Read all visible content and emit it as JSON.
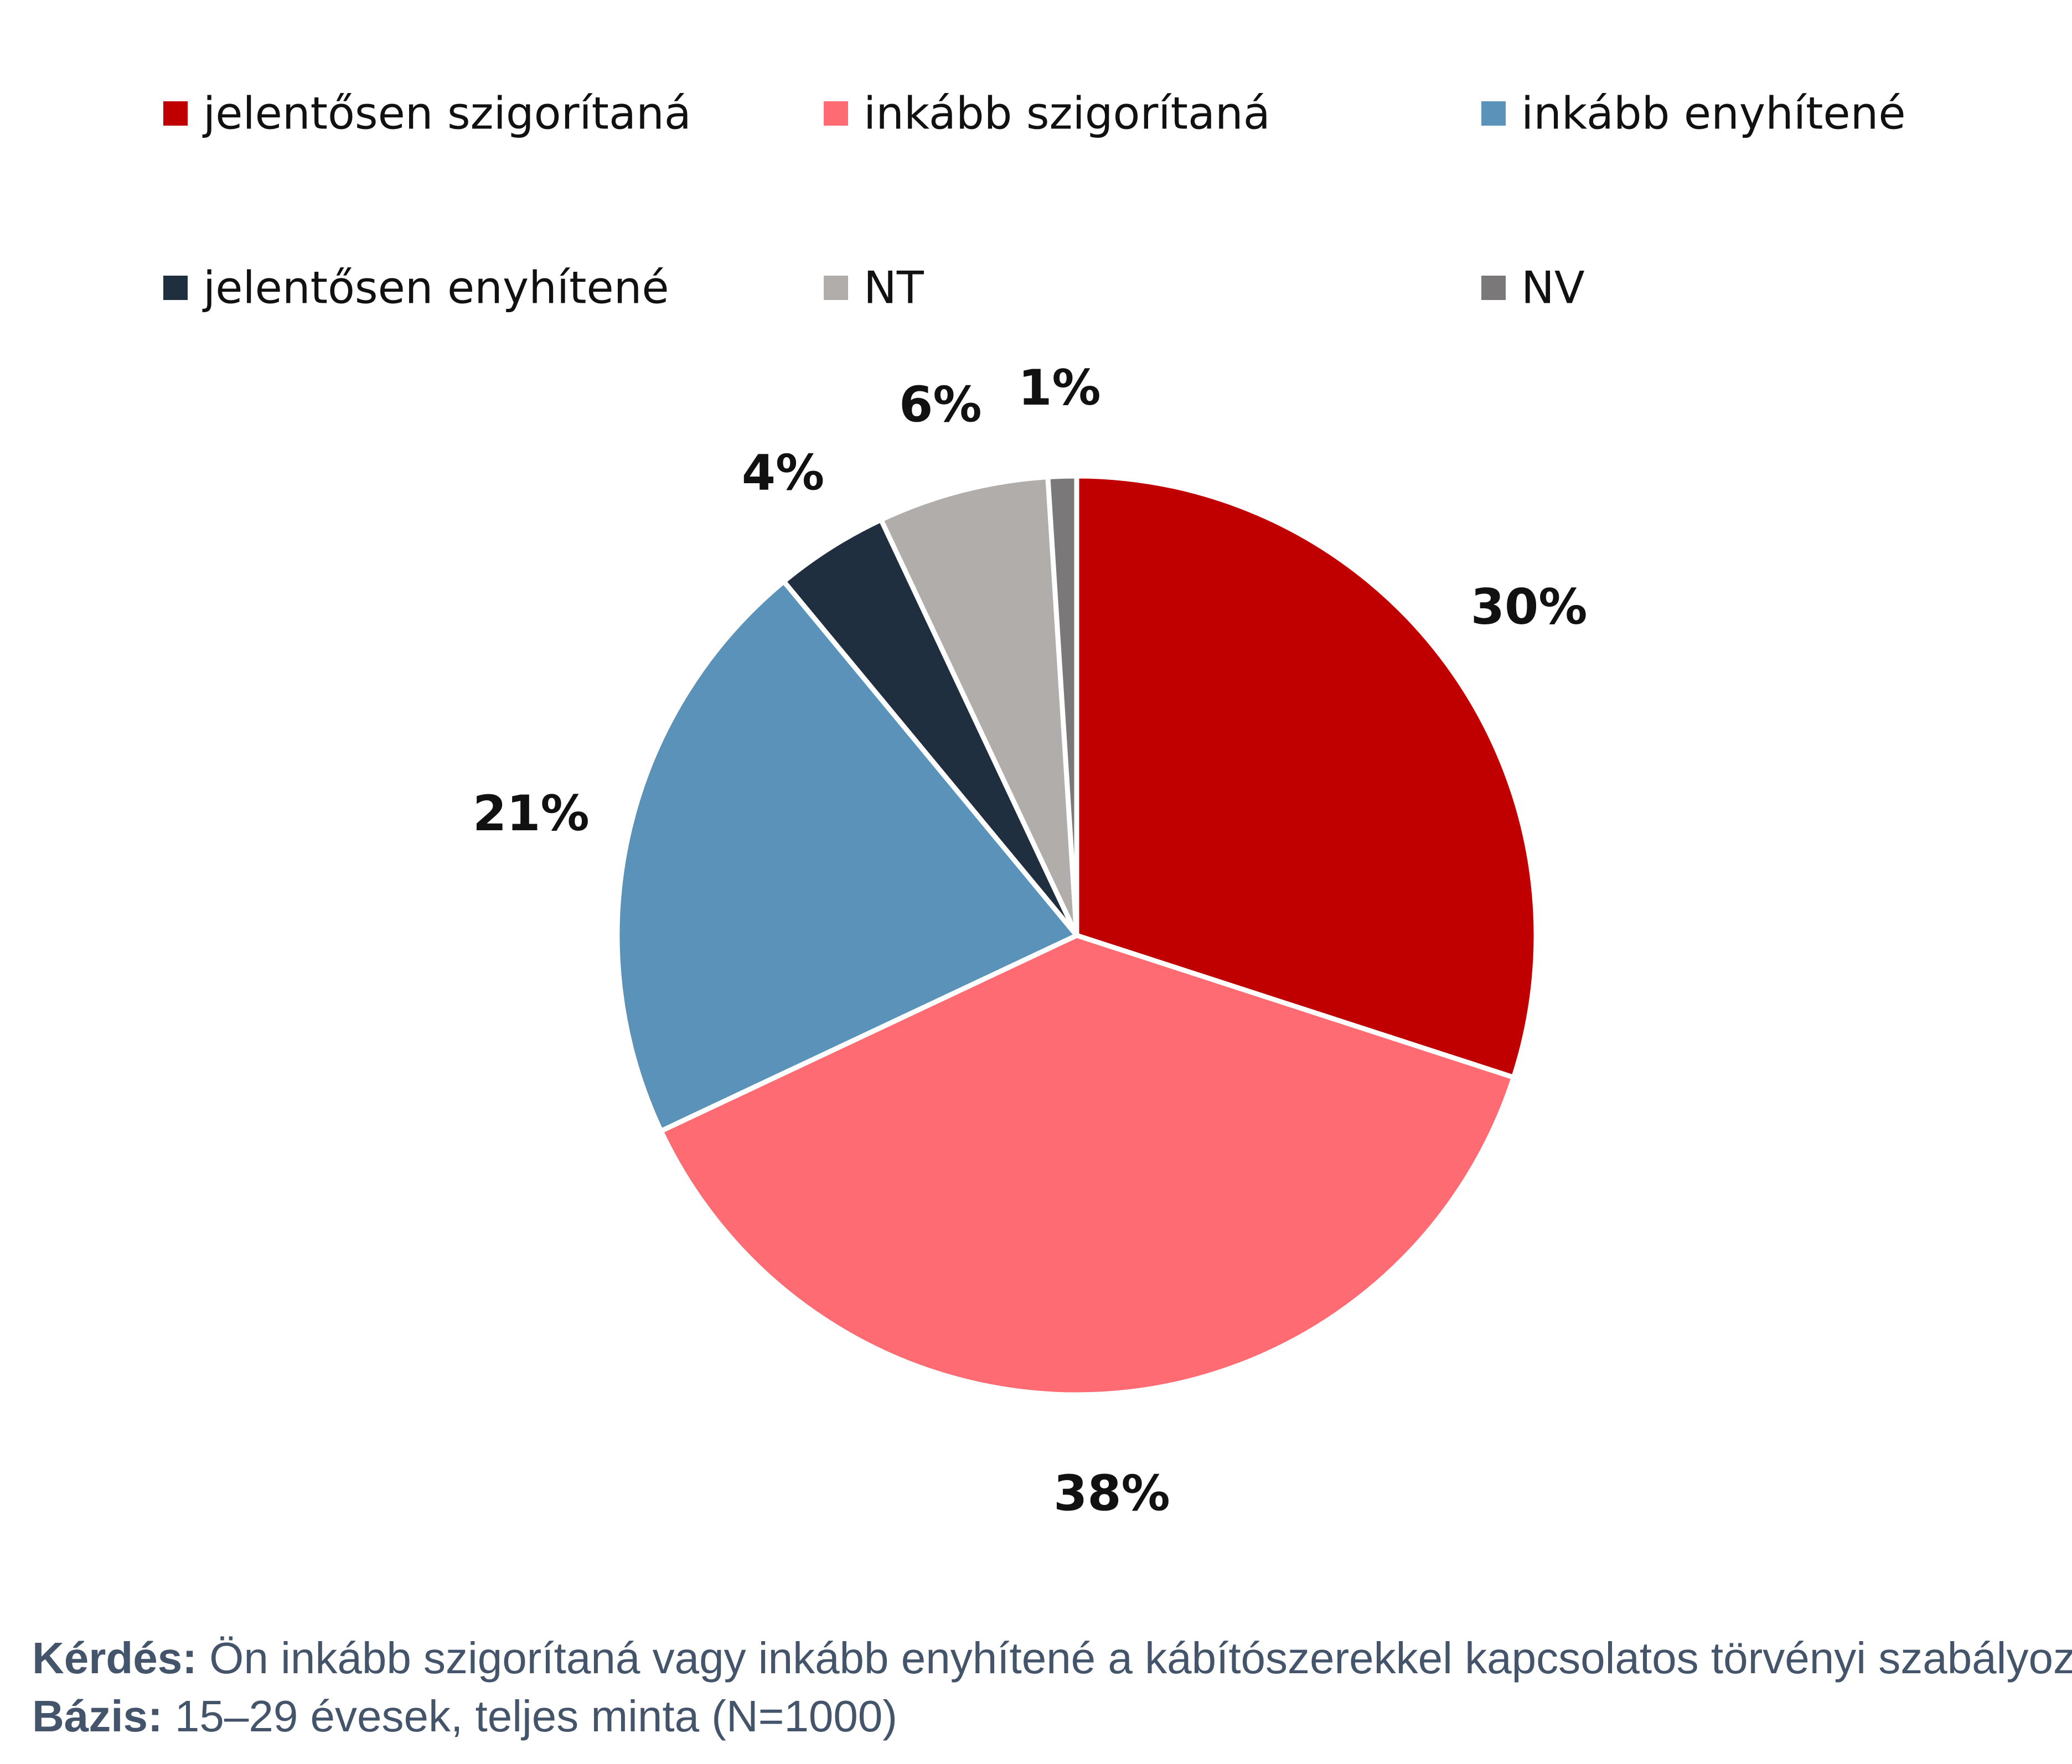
{
  "chart_data": {
    "type": "pie",
    "categories": [
      "jelentősen szigorítaná",
      "inkább szigorítaná",
      "inkább enyhítené",
      "jelentősen enyhítené",
      "NT",
      "NV"
    ],
    "values": [
      30,
      38,
      21,
      4,
      6,
      1
    ],
    "data_labels": [
      "30%",
      "38%",
      "21%",
      "4%",
      "6%",
      "1%"
    ],
    "colors": [
      "#c00000",
      "#ff6b72",
      "#5b92b9",
      "#1f2f40",
      "#b0adab",
      "#7a7878"
    ],
    "start_angle_deg": 0,
    "direction": "clockwise",
    "legend_placement": "top"
  },
  "footnote": {
    "question_key": "Kérdés:",
    "question_text": " Ön inkább szigorítaná vagy inkább enyhítené a kábítószerekkel kapcsolatos törvényi szabályozást?",
    "base_key": "Bázis:",
    "base_text": " 15–29 évesek, teljes minta (N=1000)"
  }
}
